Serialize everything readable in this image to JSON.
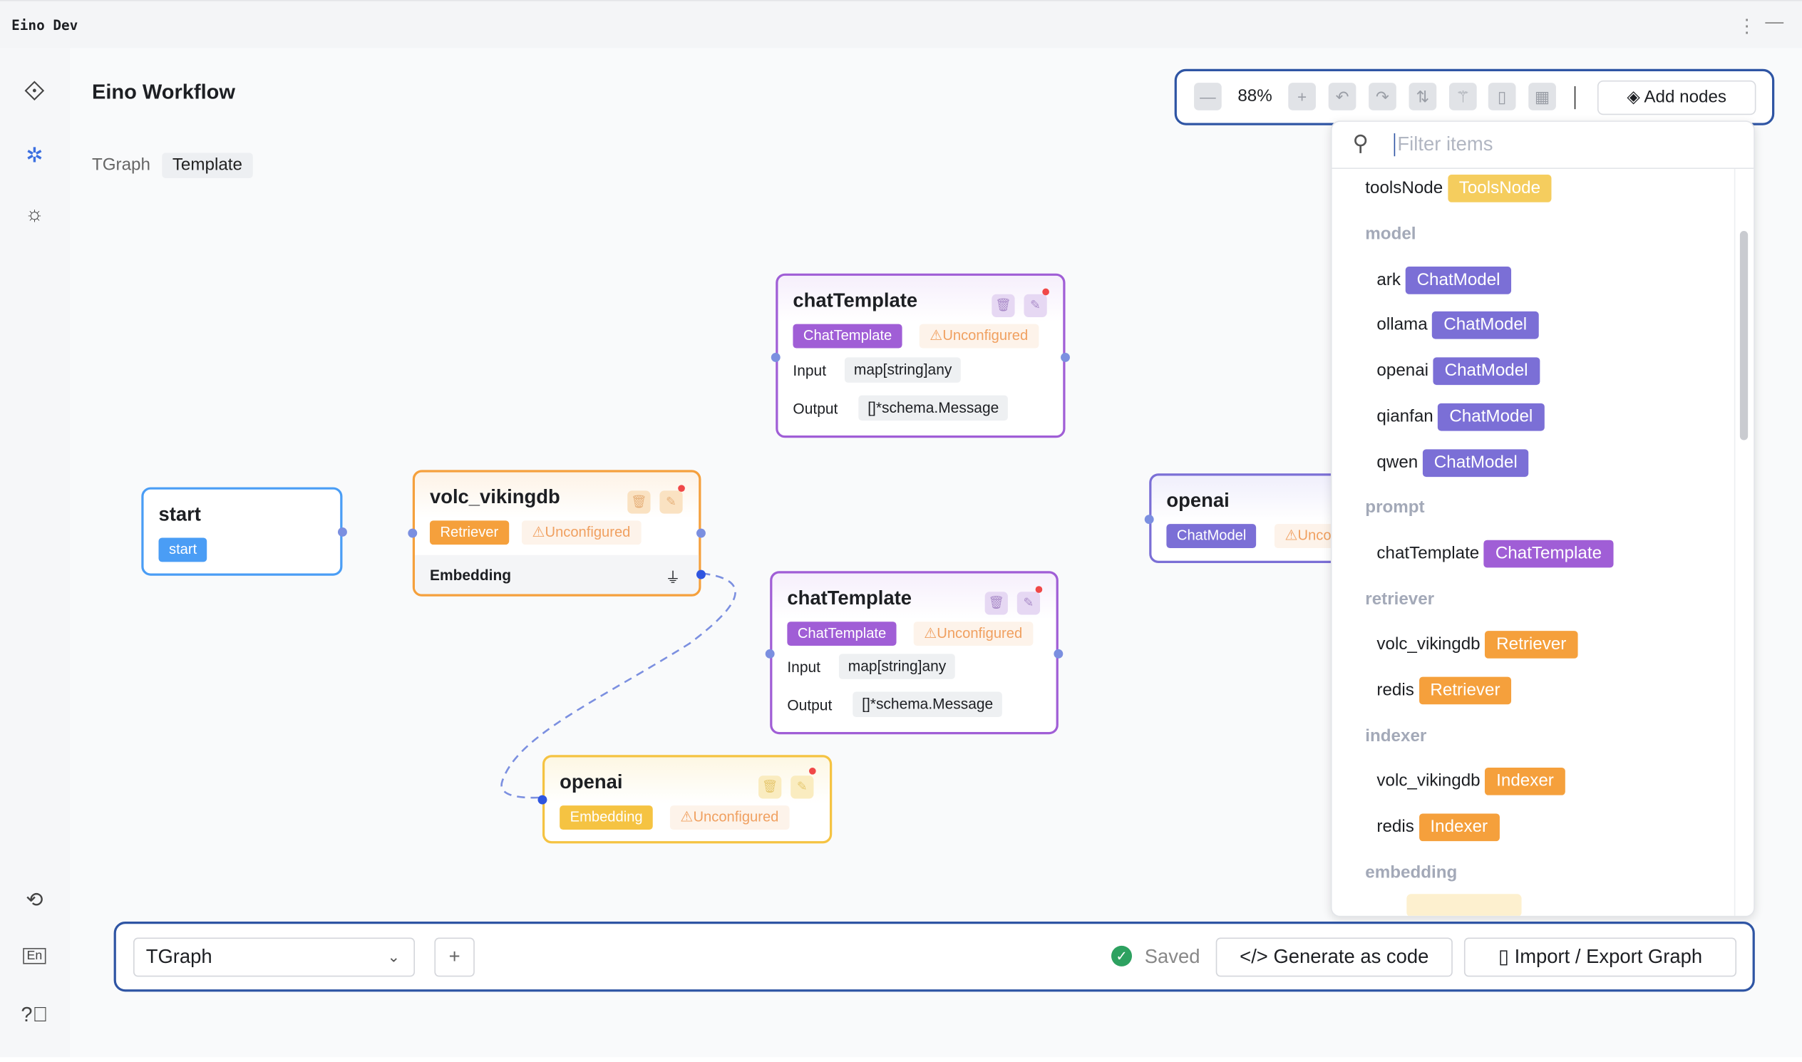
{
  "window": {
    "title": "Eino Dev"
  },
  "sidebar": {
    "icons": [
      "eino-logo-icon",
      "graph-icon",
      "bug-icon",
      "sync-icon",
      "language-icon",
      "help-icon"
    ]
  },
  "page": {
    "title": "Eino Workflow",
    "breadcrumb": [
      "TGraph",
      "Template"
    ]
  },
  "toolbar": {
    "zoom": "88%",
    "add_nodes": "Add nodes"
  },
  "dropdown": {
    "placeholder": "Filter items",
    "top_item": {
      "name": "toolsNode",
      "tag": "ToolsNode",
      "color": "#f5cd5e"
    },
    "groups": [
      {
        "title": "model",
        "items": [
          {
            "name": "ark",
            "tag": "ChatModel"
          },
          {
            "name": "ollama",
            "tag": "ChatModel"
          },
          {
            "name": "openai",
            "tag": "ChatModel"
          },
          {
            "name": "qianfan",
            "tag": "ChatModel"
          },
          {
            "name": "qwen",
            "tag": "ChatModel"
          }
        ]
      },
      {
        "title": "prompt",
        "items": [
          {
            "name": "chatTemplate",
            "tag": "ChatTemplate"
          }
        ]
      },
      {
        "title": "retriever",
        "items": [
          {
            "name": "volc_vikingdb",
            "tag": "Retriever"
          },
          {
            "name": "redis",
            "tag": "Retriever"
          }
        ]
      },
      {
        "title": "indexer",
        "items": [
          {
            "name": "volc_vikingdb",
            "tag": "Indexer"
          },
          {
            "name": "redis",
            "tag": "Indexer"
          }
        ]
      },
      {
        "title": "embedding",
        "items": []
      }
    ]
  },
  "nodes": {
    "start": {
      "title": "start",
      "tag": "start"
    },
    "chat1": {
      "title": "chatTemplate",
      "tag": "ChatTemplate",
      "status": "⚠Unconfigured",
      "input_label": "Input",
      "input": "map[string]any",
      "output_label": "Output",
      "output": "[]*schema.Message"
    },
    "chat2": {
      "title": "chatTemplate",
      "tag": "ChatTemplate",
      "status": "⚠Unconfigured",
      "input_label": "Input",
      "input": "map[string]any",
      "output_label": "Output",
      "output": "[]*schema.Message"
    },
    "viking": {
      "title": "volc_vikingdb",
      "tag": "Retriever",
      "status": "⚠Unconfigured",
      "sub": "Embedding"
    },
    "emb": {
      "title": "openai",
      "tag": "Embedding",
      "status": "⚠Unconfigured"
    },
    "chatmodel": {
      "title": "openai",
      "tag": "ChatModel",
      "status": "⚠Uncon"
    }
  },
  "colors": {
    "accent": "#2f55a4",
    "chatmodel": "#7b6fd6",
    "chattemplate": "#a05ed6",
    "retriever": "#f5a03c",
    "embedding": "#f5c342",
    "start": "#4a9df5"
  },
  "bottom": {
    "graph": "TGraph",
    "saved": "Saved",
    "generate": "Generate as code",
    "import_export": "Import / Export Graph"
  }
}
